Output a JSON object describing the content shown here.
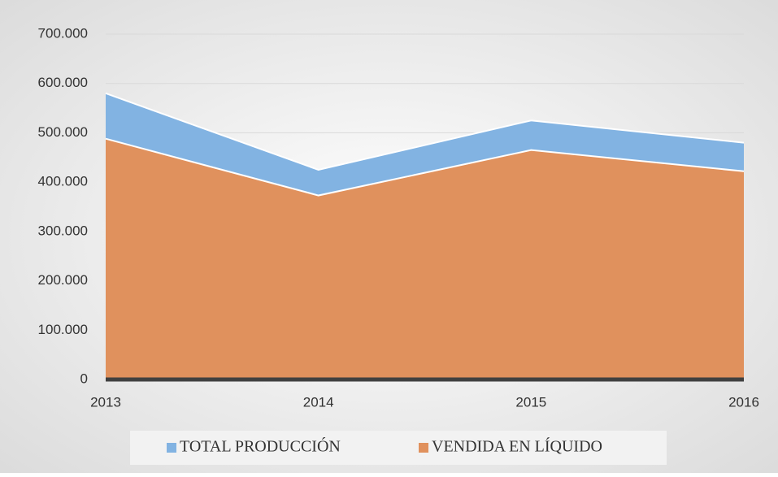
{
  "chart_data": {
    "type": "area",
    "categories": [
      "2013",
      "2014",
      "2015",
      "2016"
    ],
    "series": [
      {
        "name": "TOTAL PRODUCCIÓN",
        "color": "#82b3e2",
        "values": [
          580000,
          425000,
          525000,
          480000
        ]
      },
      {
        "name": "VENDIDA EN LÍQUIDO",
        "color": "#e0915d",
        "values": [
          488000,
          373000,
          465000,
          422000
        ]
      }
    ],
    "ylim": [
      0,
      700000
    ],
    "yticks": [
      0,
      {
        "value": 100000,
        "label": "100.000"
      },
      {
        "value": 200000,
        "label": "200.000"
      },
      {
        "value": 300000,
        "label": "300.000"
      },
      {
        "value": 400000,
        "label": "400.000"
      },
      {
        "value": 500000,
        "label": "500.000"
      },
      {
        "value": 600000,
        "label": "600.000"
      },
      {
        "value": 700000,
        "label": "700.000"
      }
    ],
    "grid": true,
    "legend": "bottom"
  }
}
